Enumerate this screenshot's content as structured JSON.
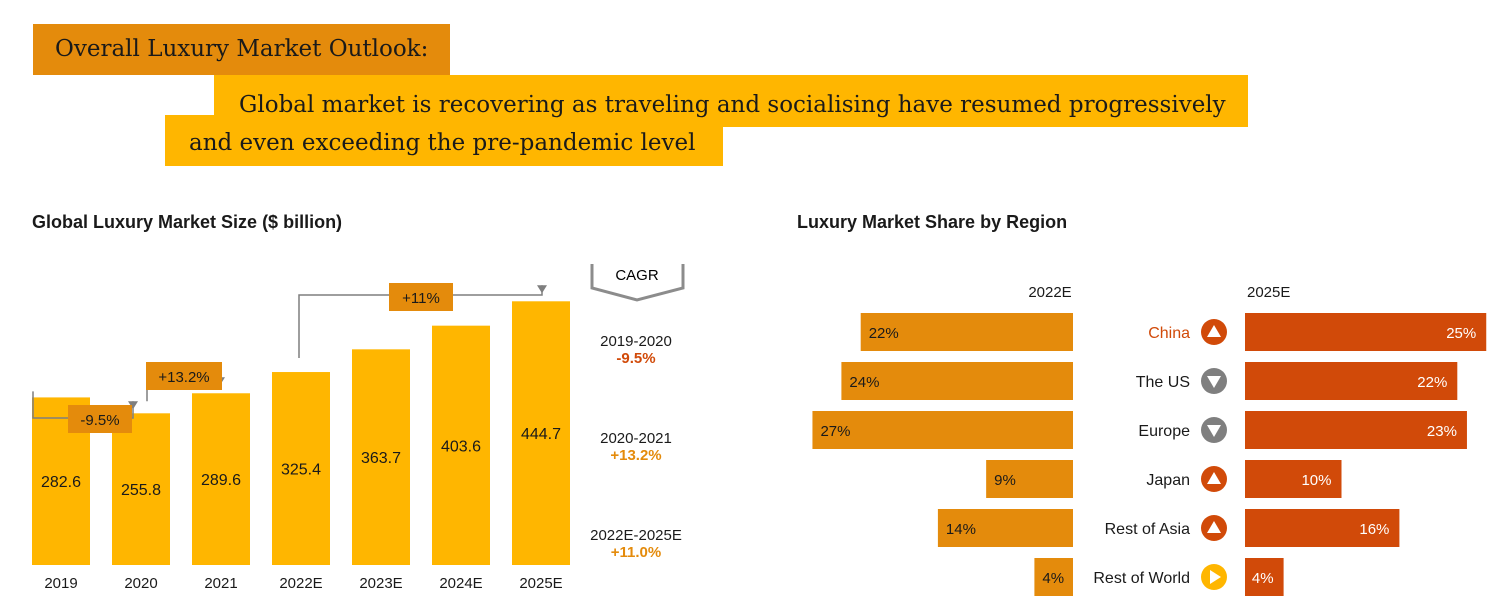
{
  "header": {
    "title": "Overall Luxury Market Outlook:",
    "subtitle": "Global market is recovering as traveling and socialising have resumed progressively and even exceeding the pre-pandemic level"
  },
  "colors": {
    "gold": "#FFB600",
    "amber": "#E48B0C",
    "orange_red": "#D14A09",
    "grey": "#7F7F7F"
  },
  "cagr": {
    "label": "CAGR",
    "periods": [
      {
        "period": "2019-2020",
        "value": "-9.5%",
        "color": "#D14A09"
      },
      {
        "period": "2020-2021",
        "value": "+13.2%",
        "color": "#E48B0C"
      },
      {
        "period": "2022E-2025E",
        "value": "+11.0%",
        "color": "#E48B0C"
      }
    ]
  },
  "chart_data": [
    {
      "type": "bar",
      "title": "Global Luxury Market Size ($ billion)",
      "categories": [
        "2019",
        "2020",
        "2021",
        "2022E",
        "2023E",
        "2024E",
        "2025E"
      ],
      "values": [
        282.6,
        255.8,
        289.6,
        325.4,
        363.7,
        403.6,
        444.7
      ],
      "value_labels": [
        "282.6",
        "255.8",
        "289.6",
        "325.4",
        "363.7",
        "403.6",
        "444.7"
      ],
      "ylim": [
        0,
        460
      ],
      "annotations": [
        {
          "label": "-9.5%",
          "from": "2019",
          "to": "2020"
        },
        {
          "label": "+13.2%",
          "from": "2020",
          "to": "2021"
        },
        {
          "label": "+11%",
          "from": "2022E",
          "to": "2025E"
        }
      ]
    },
    {
      "type": "bar",
      "title": "Luxury Market Share by Region",
      "categories": [
        "China",
        "The US",
        "Europe",
        "Japan",
        "Rest of Asia",
        "Rest of World"
      ],
      "series": [
        {
          "name": "2022E",
          "values": [
            22,
            24,
            27,
            9,
            14,
            4
          ],
          "labels": [
            "22%",
            "24%",
            "27%",
            "9%",
            "14%",
            "4%"
          ]
        },
        {
          "name": "2025E",
          "values": [
            25,
            22,
            23,
            10,
            16,
            4
          ],
          "labels": [
            "25%",
            "22%",
            "23%",
            "10%",
            "16%",
            "4%"
          ]
        }
      ],
      "trends": [
        "up",
        "down",
        "down",
        "up",
        "up",
        "flat"
      ],
      "xlim": [
        0,
        28
      ]
    }
  ]
}
